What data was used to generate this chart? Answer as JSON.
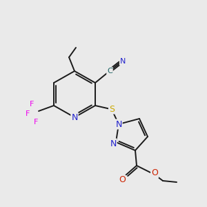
{
  "bg_color": "#eaeaea",
  "bond_color": "#1a1a1a",
  "bond_width": 1.4,
  "atom_colors": {
    "N": "#2222cc",
    "O": "#cc2200",
    "S": "#ccaa00",
    "F": "#ee00ee",
    "C": "#1a6060"
  },
  "figsize": [
    3.0,
    3.0
  ],
  "dpi": 100
}
